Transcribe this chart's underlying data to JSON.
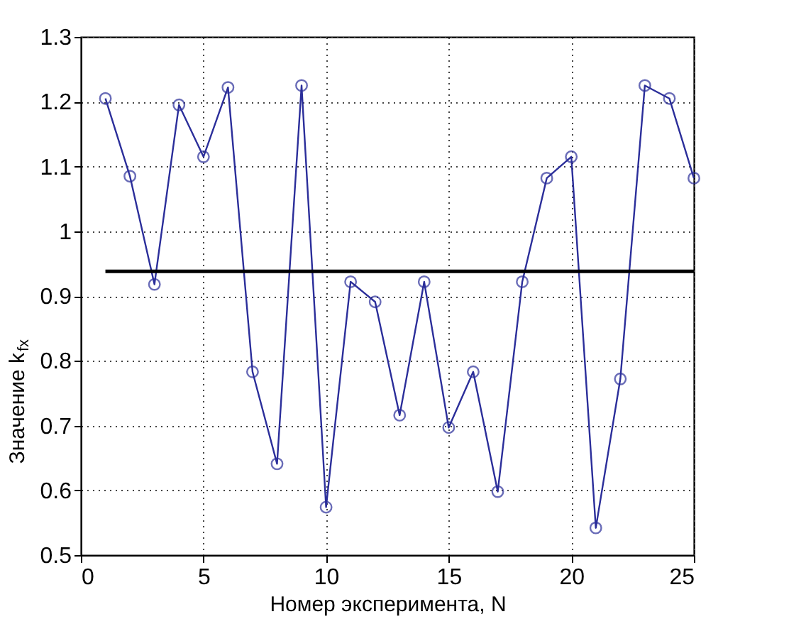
{
  "chart_data": {
    "type": "line",
    "xlabel": "Номер эксперимента, N",
    "ylabel": "Значение k$_{fx}$",
    "xlim": [
      0,
      25
    ],
    "xticks": [
      0,
      5,
      10,
      15,
      20,
      25
    ],
    "ylim": [
      0.5,
      1.3
    ],
    "yticks": [
      0.5,
      0.6,
      0.7,
      0.8,
      0.9,
      1,
      1.1,
      1.2,
      1.3
    ],
    "grid": true,
    "series": [
      {
        "color": "#2b2e9a",
        "marker": "circle",
        "x": [
          1,
          2,
          3,
          4,
          5,
          6,
          7,
          8,
          9,
          10,
          11,
          12,
          13,
          14,
          15,
          16,
          17,
          18,
          19,
          20,
          21,
          22,
          23,
          24,
          25
        ],
        "values": [
          1.205,
          1.085,
          0.918,
          1.195,
          1.115,
          1.222,
          0.783,
          0.641,
          1.225,
          0.574,
          0.922,
          0.891,
          0.716,
          0.922,
          0.697,
          0.783,
          0.598,
          0.922,
          1.082,
          1.115,
          0.542,
          0.772,
          1.225,
          1.205,
          1.082
        ]
      },
      {
        "color": "#000000",
        "marker": "none",
        "x": [
          1,
          25
        ],
        "values": [
          0.938,
          0.938
        ]
      }
    ]
  }
}
